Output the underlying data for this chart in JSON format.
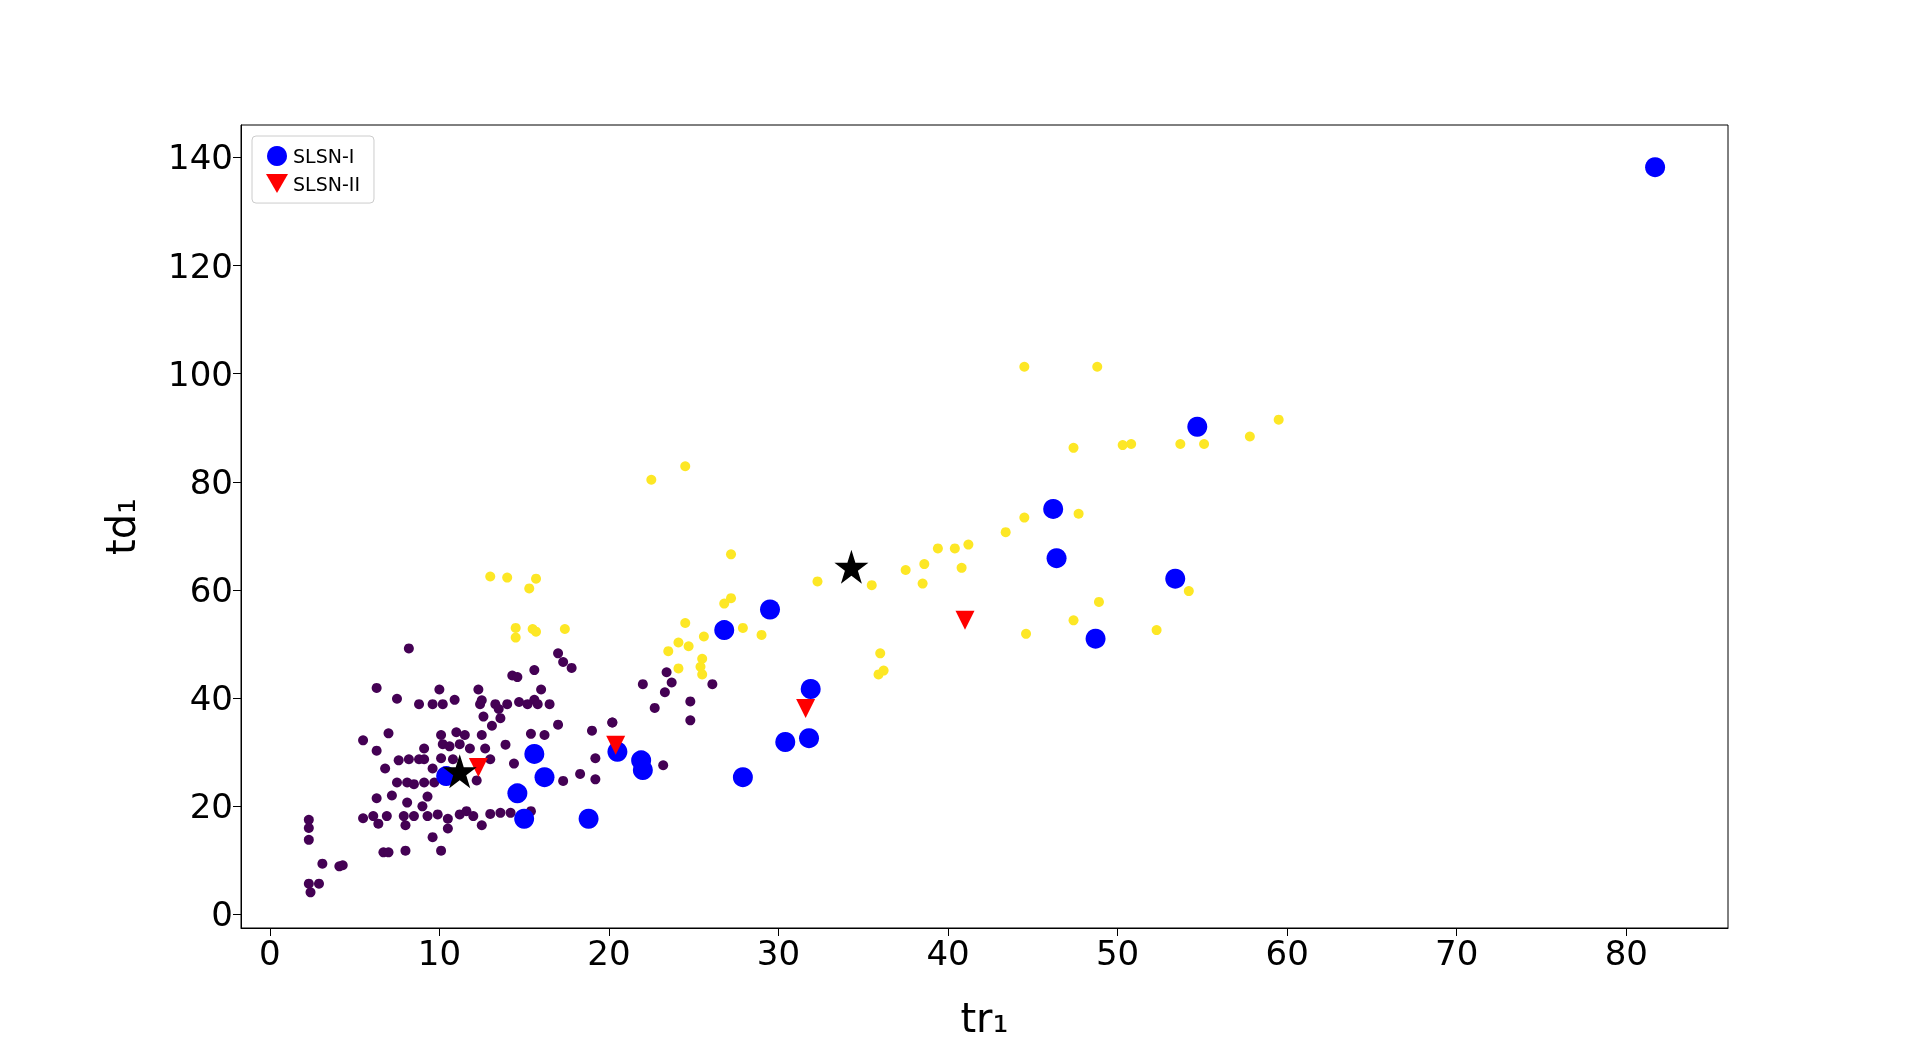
{
  "chart_data": {
    "type": "scatter",
    "xlabel": "tr₁",
    "ylabel": "td₁",
    "xlim": [
      -1.7,
      86
    ],
    "ylim": [
      -2.5,
      146
    ],
    "xticks": [
      0,
      10,
      20,
      30,
      40,
      50,
      60,
      70,
      80
    ],
    "yticks": [
      0,
      20,
      40,
      60,
      80,
      100,
      120,
      140
    ],
    "grid": false,
    "legend": "top left",
    "series": [
      {
        "color": "#440154",
        "marker": "circle",
        "x": [
          8.2,
          6.3,
          7.5,
          10.0,
          12.3,
          8.8,
          9.6,
          10.2,
          10.9,
          12.4,
          12.5,
          13.3,
          13.5,
          14.0,
          14.7,
          15.2,
          15.6,
          15.8,
          16.5,
          16.0,
          15.6,
          14.3,
          14.6,
          17.0,
          17.3,
          17.8,
          12.6,
          13.6,
          13.1,
          17.0,
          19.0,
          20.2,
          5.5,
          7.0,
          6.3,
          10.1,
          11.0,
          11.5,
          12.5,
          15.4,
          16.2,
          10.2,
          10.6,
          11.2,
          11.8,
          12.7,
          13.9,
          9.1,
          7.6,
          8.2,
          8.8,
          9.1,
          10.1,
          10.8,
          13.0,
          6.8,
          9.6,
          14.4,
          19.2,
          18.3,
          19.2,
          17.3,
          7.5,
          8.1,
          8.5,
          9.1,
          9.7,
          12.2,
          6.3,
          7.2,
          8.1,
          9.3,
          9.0,
          5.5,
          6.1,
          6.4,
          6.9,
          7.9,
          8.5,
          9.3,
          9.9,
          10.5,
          8.0,
          10.5,
          11.2,
          11.6,
          12.0,
          12.5,
          13.0,
          13.6,
          14.2,
          15.4,
          2.3,
          2.3,
          2.3,
          9.6,
          6.7,
          7.0,
          8.0,
          10.1,
          3.1,
          4.1,
          4.3,
          2.3,
          2.9,
          2.4,
          22.0,
          23.4,
          23.7,
          23.3,
          22.7,
          26.1,
          24.8,
          24.8,
          20.2,
          23.2
        ],
        "values": [
          49.2,
          41.9,
          39.9,
          41.6,
          41.6,
          38.9,
          38.9,
          38.9,
          39.7,
          38.9,
          39.6,
          38.9,
          38.0,
          38.9,
          39.3,
          38.9,
          39.7,
          38.9,
          38.9,
          41.6,
          45.2,
          44.2,
          43.9,
          48.3,
          46.7,
          45.6,
          36.6,
          36.3,
          34.9,
          35.1,
          34.0,
          35.5,
          32.2,
          33.5,
          30.3,
          33.2,
          33.7,
          33.2,
          33.2,
          33.4,
          33.2,
          31.5,
          31.1,
          31.5,
          30.7,
          30.7,
          31.4,
          30.7,
          28.5,
          28.7,
          28.7,
          28.7,
          28.9,
          28.7,
          28.7,
          27.0,
          27.0,
          27.9,
          28.9,
          26.0,
          25.0,
          24.7,
          24.4,
          24.4,
          24.1,
          24.4,
          24.4,
          24.8,
          21.5,
          22.0,
          20.7,
          21.8,
          20.0,
          17.8,
          18.2,
          16.8,
          18.2,
          18.2,
          18.2,
          18.2,
          18.5,
          17.7,
          16.5,
          15.9,
          18.5,
          19.1,
          18.2,
          16.5,
          18.6,
          18.8,
          18.8,
          19.1,
          17.5,
          16.0,
          13.8,
          14.3,
          11.5,
          11.5,
          11.8,
          11.8,
          9.4,
          8.9,
          9.1,
          5.7,
          5.7,
          4.1,
          42.6,
          44.8,
          42.9,
          41.1,
          38.2,
          42.6,
          39.4,
          35.9,
          35.5,
          27.6
        ]
      },
      {
        "color": "#fde725",
        "marker": "circle",
        "x": [
          44.5,
          48.8,
          59.5,
          57.8,
          53.7,
          55.1,
          50.3,
          50.8,
          47.4,
          47.7,
          44.5,
          43.4,
          41.2,
          40.4,
          39.4,
          37.5,
          38.6,
          40.8,
          38.5,
          35.5,
          32.3,
          27.2,
          22.5,
          24.5,
          13.0,
          14.0,
          15.7,
          15.3,
          14.5,
          15.5,
          15.7,
          14.5,
          17.4,
          27.2,
          26.8,
          27.9,
          29.0,
          24.5,
          25.6,
          24.1,
          24.7,
          23.5,
          25.5,
          25.4,
          25.5,
          24.1,
          36.0,
          36.2,
          35.9,
          48.9,
          47.4,
          44.6,
          52.3,
          54.2
        ],
        "values": [
          101.3,
          101.3,
          91.5,
          88.4,
          87.0,
          87.0,
          86.8,
          87.0,
          86.3,
          74.1,
          73.4,
          70.7,
          68.4,
          67.7,
          67.7,
          63.7,
          64.8,
          64.1,
          61.2,
          60.9,
          61.6,
          66.6,
          80.4,
          82.9,
          62.5,
          62.3,
          62.1,
          60.3,
          53.0,
          52.8,
          52.3,
          51.2,
          52.8,
          58.5,
          57.5,
          53.0,
          51.7,
          53.9,
          51.4,
          50.3,
          49.6,
          48.7,
          47.3,
          45.8,
          44.4,
          45.5,
          48.3,
          45.1,
          44.4,
          57.8,
          54.4,
          51.9,
          52.6,
          59.8
        ]
      },
      {
        "name": "SLSN-I",
        "color": "#0000ff",
        "marker": "circle",
        "x": [
          81.7,
          54.7,
          46.2,
          46.4,
          53.4,
          48.7,
          29.5,
          26.8,
          31.9,
          31.8,
          30.4,
          27.9,
          20.5,
          21.9,
          22.0,
          18.8,
          15.6,
          16.2,
          14.6,
          15.0,
          10.4
        ],
        "values": [
          138.2,
          90.2,
          75.0,
          65.9,
          62.1,
          51.0,
          56.4,
          52.6,
          41.7,
          32.6,
          31.9,
          25.4,
          30.1,
          28.5,
          26.7,
          17.7,
          29.7,
          25.4,
          22.4,
          17.7,
          25.6
        ]
      },
      {
        "name": "SLSN-II",
        "color": "#ff0000",
        "marker": "triangle",
        "x": [
          12.3,
          20.4,
          31.6,
          41.0
        ],
        "values": [
          27.2,
          31.3,
          38.1,
          54.4
        ]
      },
      {
        "color": "#000000",
        "marker": "star",
        "x": [
          34.3,
          11.2
        ],
        "values": [
          64.3,
          26.5
        ]
      }
    ]
  }
}
